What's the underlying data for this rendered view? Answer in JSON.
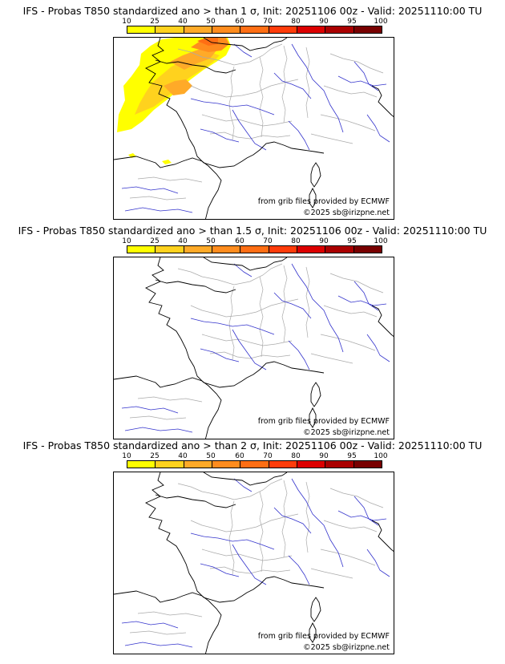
{
  "panels": [
    {
      "title": "IFS - Probas T850  standardized ano > than 1 σ, Init: 20251106 00z - Valid: 20251110:00 TU",
      "has_anomaly": true
    },
    {
      "title": "IFS - Probas T850  standardized ano > than 1.5 σ, Init: 20251106 00z - Valid: 20251110:00 TU",
      "has_anomaly": false
    },
    {
      "title": "IFS - Probas T850  standardized ano > than 2 σ, Init: 20251106 00z - Valid: 20251110:00 TU",
      "has_anomaly": false
    }
  ],
  "colorbar": {
    "labels": [
      "10",
      "25",
      "40",
      "50",
      "60",
      "70",
      "80",
      "90",
      "95",
      "100"
    ],
    "colors": [
      "#ffff00",
      "#ffd21e",
      "#ffaa28",
      "#ff8c1e",
      "#ff6e14",
      "#ff3c0a",
      "#dc0000",
      "#aa0000",
      "#780000"
    ]
  },
  "credits": {
    "source": "from grib files provided by ECMWF",
    "copyright": "©2025 sb@irizpne.net"
  },
  "colors": {
    "rivers": "#3333cc",
    "borders": "#aaaaaa",
    "coast": "#000000"
  }
}
